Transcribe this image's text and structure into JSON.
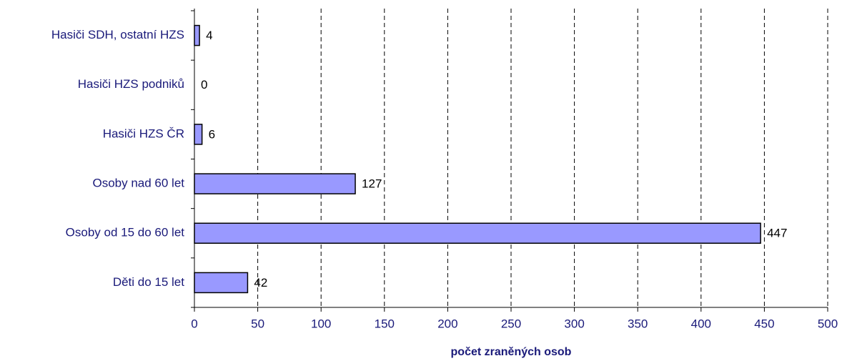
{
  "chart_data": {
    "type": "barh",
    "categories": [
      "Hasiči SDH, ostatní HZS",
      "Hasiči HZS podniků",
      "Hasiči HZS ČR",
      "Osoby nad 60 let",
      "Osoby od 15 do 60 let",
      "Děti do 15 let"
    ],
    "values": [
      4,
      0,
      6,
      127,
      447,
      42
    ],
    "color": "#9999ff",
    "xlim": [
      0,
      500
    ],
    "xticks": [
      0,
      50,
      100,
      150,
      200,
      250,
      300,
      350,
      400,
      450,
      500
    ],
    "xlabel": "počet zraněných osob",
    "grid": true
  }
}
